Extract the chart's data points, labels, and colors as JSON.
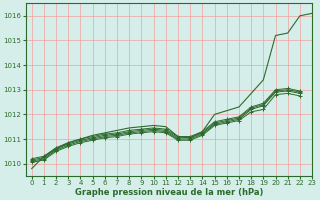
{
  "bg_color": "#d6eeea",
  "grid_color": "#f0a0a0",
  "line_color": "#2d6a2d",
  "text_color": "#2d6a2d",
  "xlabel": "Graphe pression niveau de la mer (hPa)",
  "ylim": [
    1009.5,
    1016.5
  ],
  "xlim": [
    -0.5,
    23
  ],
  "yticks": [
    1010,
    1011,
    1012,
    1013,
    1014,
    1015,
    1016
  ],
  "xticks": [
    0,
    1,
    2,
    3,
    4,
    5,
    6,
    7,
    8,
    9,
    10,
    11,
    12,
    13,
    14,
    15,
    16,
    17,
    18,
    19,
    20,
    21,
    22,
    23
  ],
  "line_smooth": [
    1009.8,
    1010.3,
    1010.6,
    1010.85,
    1011.0,
    1011.15,
    1011.25,
    1011.35,
    1011.45,
    1011.5,
    1011.55,
    1011.5,
    1011.1,
    1011.05,
    1011.3,
    1012.0,
    1012.15,
    1012.3,
    1012.85,
    1013.4,
    1015.2,
    1015.3,
    1016.0,
    1016.1
  ],
  "line_a": [
    1010.05,
    1010.15,
    1010.5,
    1010.7,
    1010.85,
    1010.95,
    1011.05,
    1011.1,
    1011.2,
    1011.25,
    1011.3,
    1011.25,
    1010.95,
    1010.95,
    1011.15,
    1011.55,
    1011.65,
    1011.75,
    1012.1,
    1012.2,
    1012.8,
    1012.85,
    1012.75,
    null
  ],
  "line_b": [
    1010.1,
    1010.2,
    1010.55,
    1010.75,
    1010.9,
    1011.0,
    1011.1,
    1011.15,
    1011.25,
    1011.3,
    1011.35,
    1011.3,
    1011.0,
    1011.0,
    1011.2,
    1011.6,
    1011.7,
    1011.8,
    1012.2,
    1012.35,
    1012.9,
    1012.95,
    1012.85,
    null
  ],
  "line_c": [
    1010.15,
    1010.25,
    1010.6,
    1010.8,
    1010.95,
    1011.05,
    1011.15,
    1011.2,
    1011.3,
    1011.35,
    1011.4,
    1011.35,
    1011.05,
    1011.05,
    1011.25,
    1011.65,
    1011.75,
    1011.85,
    1012.25,
    1012.4,
    1012.95,
    1013.0,
    1012.9,
    null
  ],
  "line_d": [
    1010.2,
    1010.3,
    1010.65,
    1010.85,
    1011.0,
    1011.1,
    1011.2,
    1011.25,
    1011.35,
    1011.4,
    1011.45,
    1011.4,
    1011.1,
    1011.1,
    1011.3,
    1011.7,
    1011.8,
    1011.9,
    1012.3,
    1012.45,
    1013.0,
    1013.05,
    1012.95,
    null
  ]
}
